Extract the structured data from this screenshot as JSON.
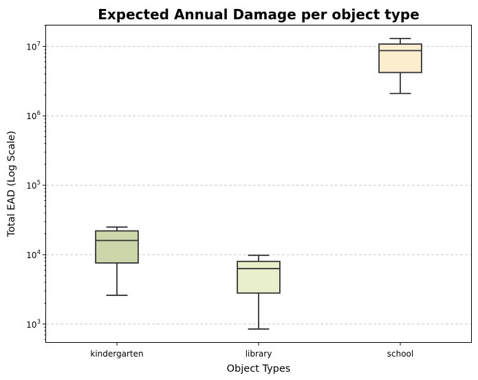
{
  "chart_data": {
    "type": "box",
    "title": "Expected Annual Damage per object type",
    "xlabel": "Object Types",
    "ylabel": "Total EAD (Log Scale)",
    "yscale": "log",
    "ylim": [
      550,
      20000000
    ],
    "ytick_base": "10",
    "yticks": [
      {
        "value": 1000,
        "exp": "3"
      },
      {
        "value": 10000,
        "exp": "4"
      },
      {
        "value": 100000,
        "exp": "5"
      },
      {
        "value": 1000000,
        "exp": "6"
      },
      {
        "value": 10000000,
        "exp": "7"
      }
    ],
    "grid": "y-dashed",
    "categories": [
      "kindergarten",
      "library",
      "school"
    ],
    "boxes": [
      {
        "category": "kindergarten",
        "whislo": 2600,
        "q1": 7600,
        "med": 16000,
        "q3": 22000,
        "whishi": 25000,
        "color": "#cdd5ab"
      },
      {
        "category": "library",
        "whislo": 850,
        "q1": 2800,
        "med": 6300,
        "q3": 8000,
        "whishi": 9800,
        "color": "#e9efca"
      },
      {
        "category": "school",
        "whislo": 2100000,
        "q1": 4200000,
        "med": 8700000,
        "q3": 10800000,
        "whishi": 13000000,
        "color": "#fbedcd"
      }
    ]
  }
}
